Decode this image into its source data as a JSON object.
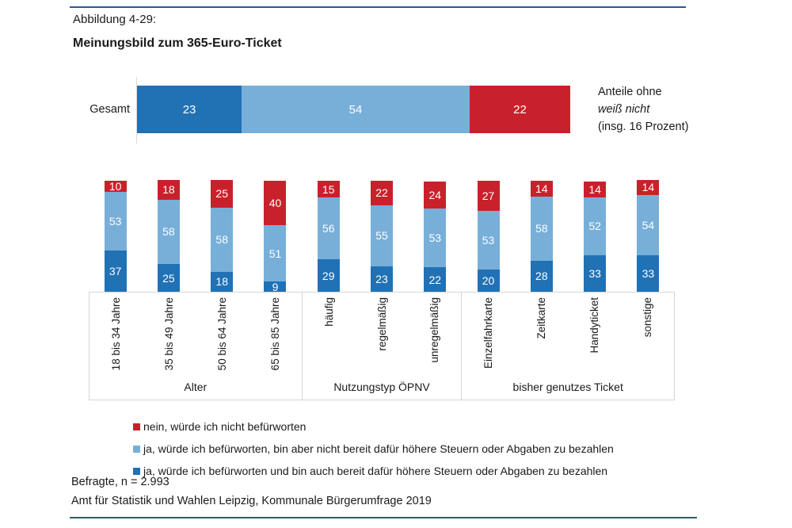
{
  "page": {
    "figure_number": "Abbildung 4-29:",
    "chart_title": "Meinungsbild zum 365-Euro-Ticket",
    "footer_line1": "Befragte, n = 2.993",
    "footer_line2": "Amt für Statistik und Wahlen Leipzig, Kommunale Bürgerumfrage 2019"
  },
  "colors": {
    "approve_and_pay": "#2171B5",
    "approve_not_pay": "#77AFD9",
    "reject": "#C9212B",
    "rule": "#2F5597",
    "box_border": "#D6D6D6"
  },
  "chart_data": [
    {
      "type": "bar",
      "orientation": "horizontal-stacked",
      "category": "Gesamt",
      "segments": [
        {
          "key": "approve_and_pay",
          "value": 23
        },
        {
          "key": "approve_not_pay",
          "value": 54
        },
        {
          "key": "reject",
          "value": 22
        }
      ],
      "annotation_lines": [
        {
          "text": "Anteile ohne",
          "italic": false
        },
        {
          "text": "weiß nicht",
          "italic": true
        },
        {
          "text": "(insg. 16 Prozent)",
          "italic": false
        }
      ]
    },
    {
      "type": "bar",
      "orientation": "vertical-stacked",
      "value_scale": [
        0,
        100
      ],
      "groups": [
        {
          "label": "Alter",
          "categories": [
            "18 bis 34 Jahre",
            "35 bis 49 Jahre",
            "50 bis 64 Jahre",
            "65 bis 85 Jahre"
          ],
          "series": [
            {
              "key": "approve_and_pay",
              "values": [
                37,
                25,
                18,
                9
              ]
            },
            {
              "key": "approve_not_pay",
              "values": [
                53,
                58,
                58,
                51
              ]
            },
            {
              "key": "reject",
              "values": [
                10,
                18,
                25,
                40
              ]
            }
          ]
        },
        {
          "label": "Nutzungstyp ÖPNV",
          "categories": [
            "häufig",
            "regelmäßig",
            "unregelmäßig"
          ],
          "series": [
            {
              "key": "approve_and_pay",
              "values": [
                29,
                23,
                22
              ]
            },
            {
              "key": "approve_not_pay",
              "values": [
                56,
                55,
                53
              ]
            },
            {
              "key": "reject",
              "values": [
                15,
                22,
                24
              ]
            }
          ]
        },
        {
          "label": "bisher genutzes Ticket",
          "categories": [
            "Einzelfahrkarte",
            "Zeitkarte",
            "Handyticket",
            "sonstige"
          ],
          "series": [
            {
              "key": "approve_and_pay",
              "values": [
                20,
                28,
                33,
                33
              ]
            },
            {
              "key": "approve_not_pay",
              "values": [
                53,
                58,
                52,
                54
              ]
            },
            {
              "key": "reject",
              "values": [
                27,
                14,
                14,
                14
              ]
            }
          ]
        }
      ]
    }
  ],
  "legend": [
    {
      "key": "reject",
      "label": "nein, würde ich nicht befürworten"
    },
    {
      "key": "approve_not_pay",
      "label": "ja, würde ich befürworten, bin aber nicht bereit dafür höhere Steuern oder Abgaben zu bezahlen"
    },
    {
      "key": "approve_and_pay",
      "label": "ja, würde ich befürworten und bin auch bereit dafür höhere Steuern oder Abgaben zu bezahlen"
    }
  ]
}
